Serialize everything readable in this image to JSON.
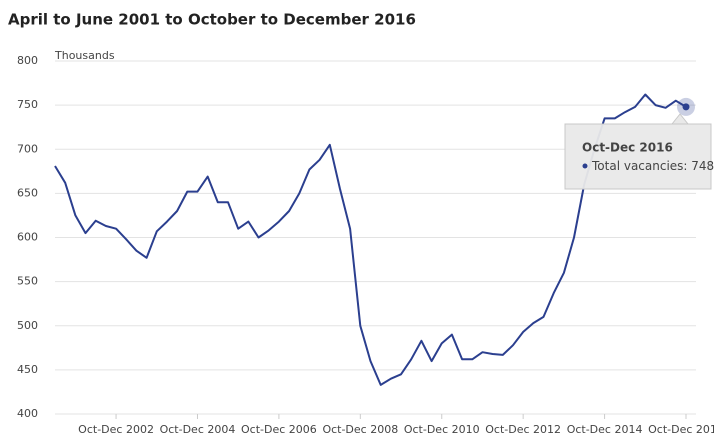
{
  "chart_data": {
    "type": "line",
    "title": "April to June 2001 to October to December 2016",
    "ylabel": "Thousands",
    "categories": [
      null,
      null,
      null,
      null,
      null,
      null,
      "Oct-Dec 2002",
      null,
      null,
      null,
      null,
      null,
      null,
      null,
      "Oct-Dec 2004",
      null,
      null,
      null,
      null,
      null,
      null,
      null,
      "Oct-Dec 2006",
      null,
      null,
      null,
      null,
      null,
      null,
      null,
      "Oct-Dec 2008",
      null,
      null,
      null,
      null,
      null,
      null,
      null,
      "Oct-Dec 2010",
      null,
      null,
      null,
      null,
      null,
      null,
      null,
      "Oct-Dec 2012",
      null,
      null,
      null,
      null,
      null,
      null,
      null,
      "Oct-Dec 2014",
      null,
      null,
      null,
      null,
      null,
      null,
      null,
      "Oct-Dec 2016"
    ],
    "series": [
      {
        "name": "Total vacancies",
        "color": "#2b3f8f",
        "values": [
          681,
          662,
          625,
          605,
          619,
          613,
          610,
          598,
          585,
          577,
          607,
          618,
          630,
          652,
          652,
          669,
          640,
          640,
          610,
          618,
          600,
          608,
          618,
          630,
          650,
          677,
          688,
          705,
          655,
          610,
          500,
          460,
          433,
          440,
          445,
          462,
          483,
          460,
          480,
          490,
          462,
          462,
          470,
          468,
          467,
          478,
          493,
          503,
          510,
          537,
          560,
          600,
          660,
          700,
          735,
          735,
          742,
          748,
          762,
          750,
          747,
          755,
          748
        ]
      }
    ],
    "ylim": [
      400,
      800
    ],
    "yticks": [
      400,
      450,
      500,
      550,
      600,
      650,
      700,
      750,
      800
    ],
    "grid": true,
    "tooltip": {
      "index": 62
    }
  }
}
